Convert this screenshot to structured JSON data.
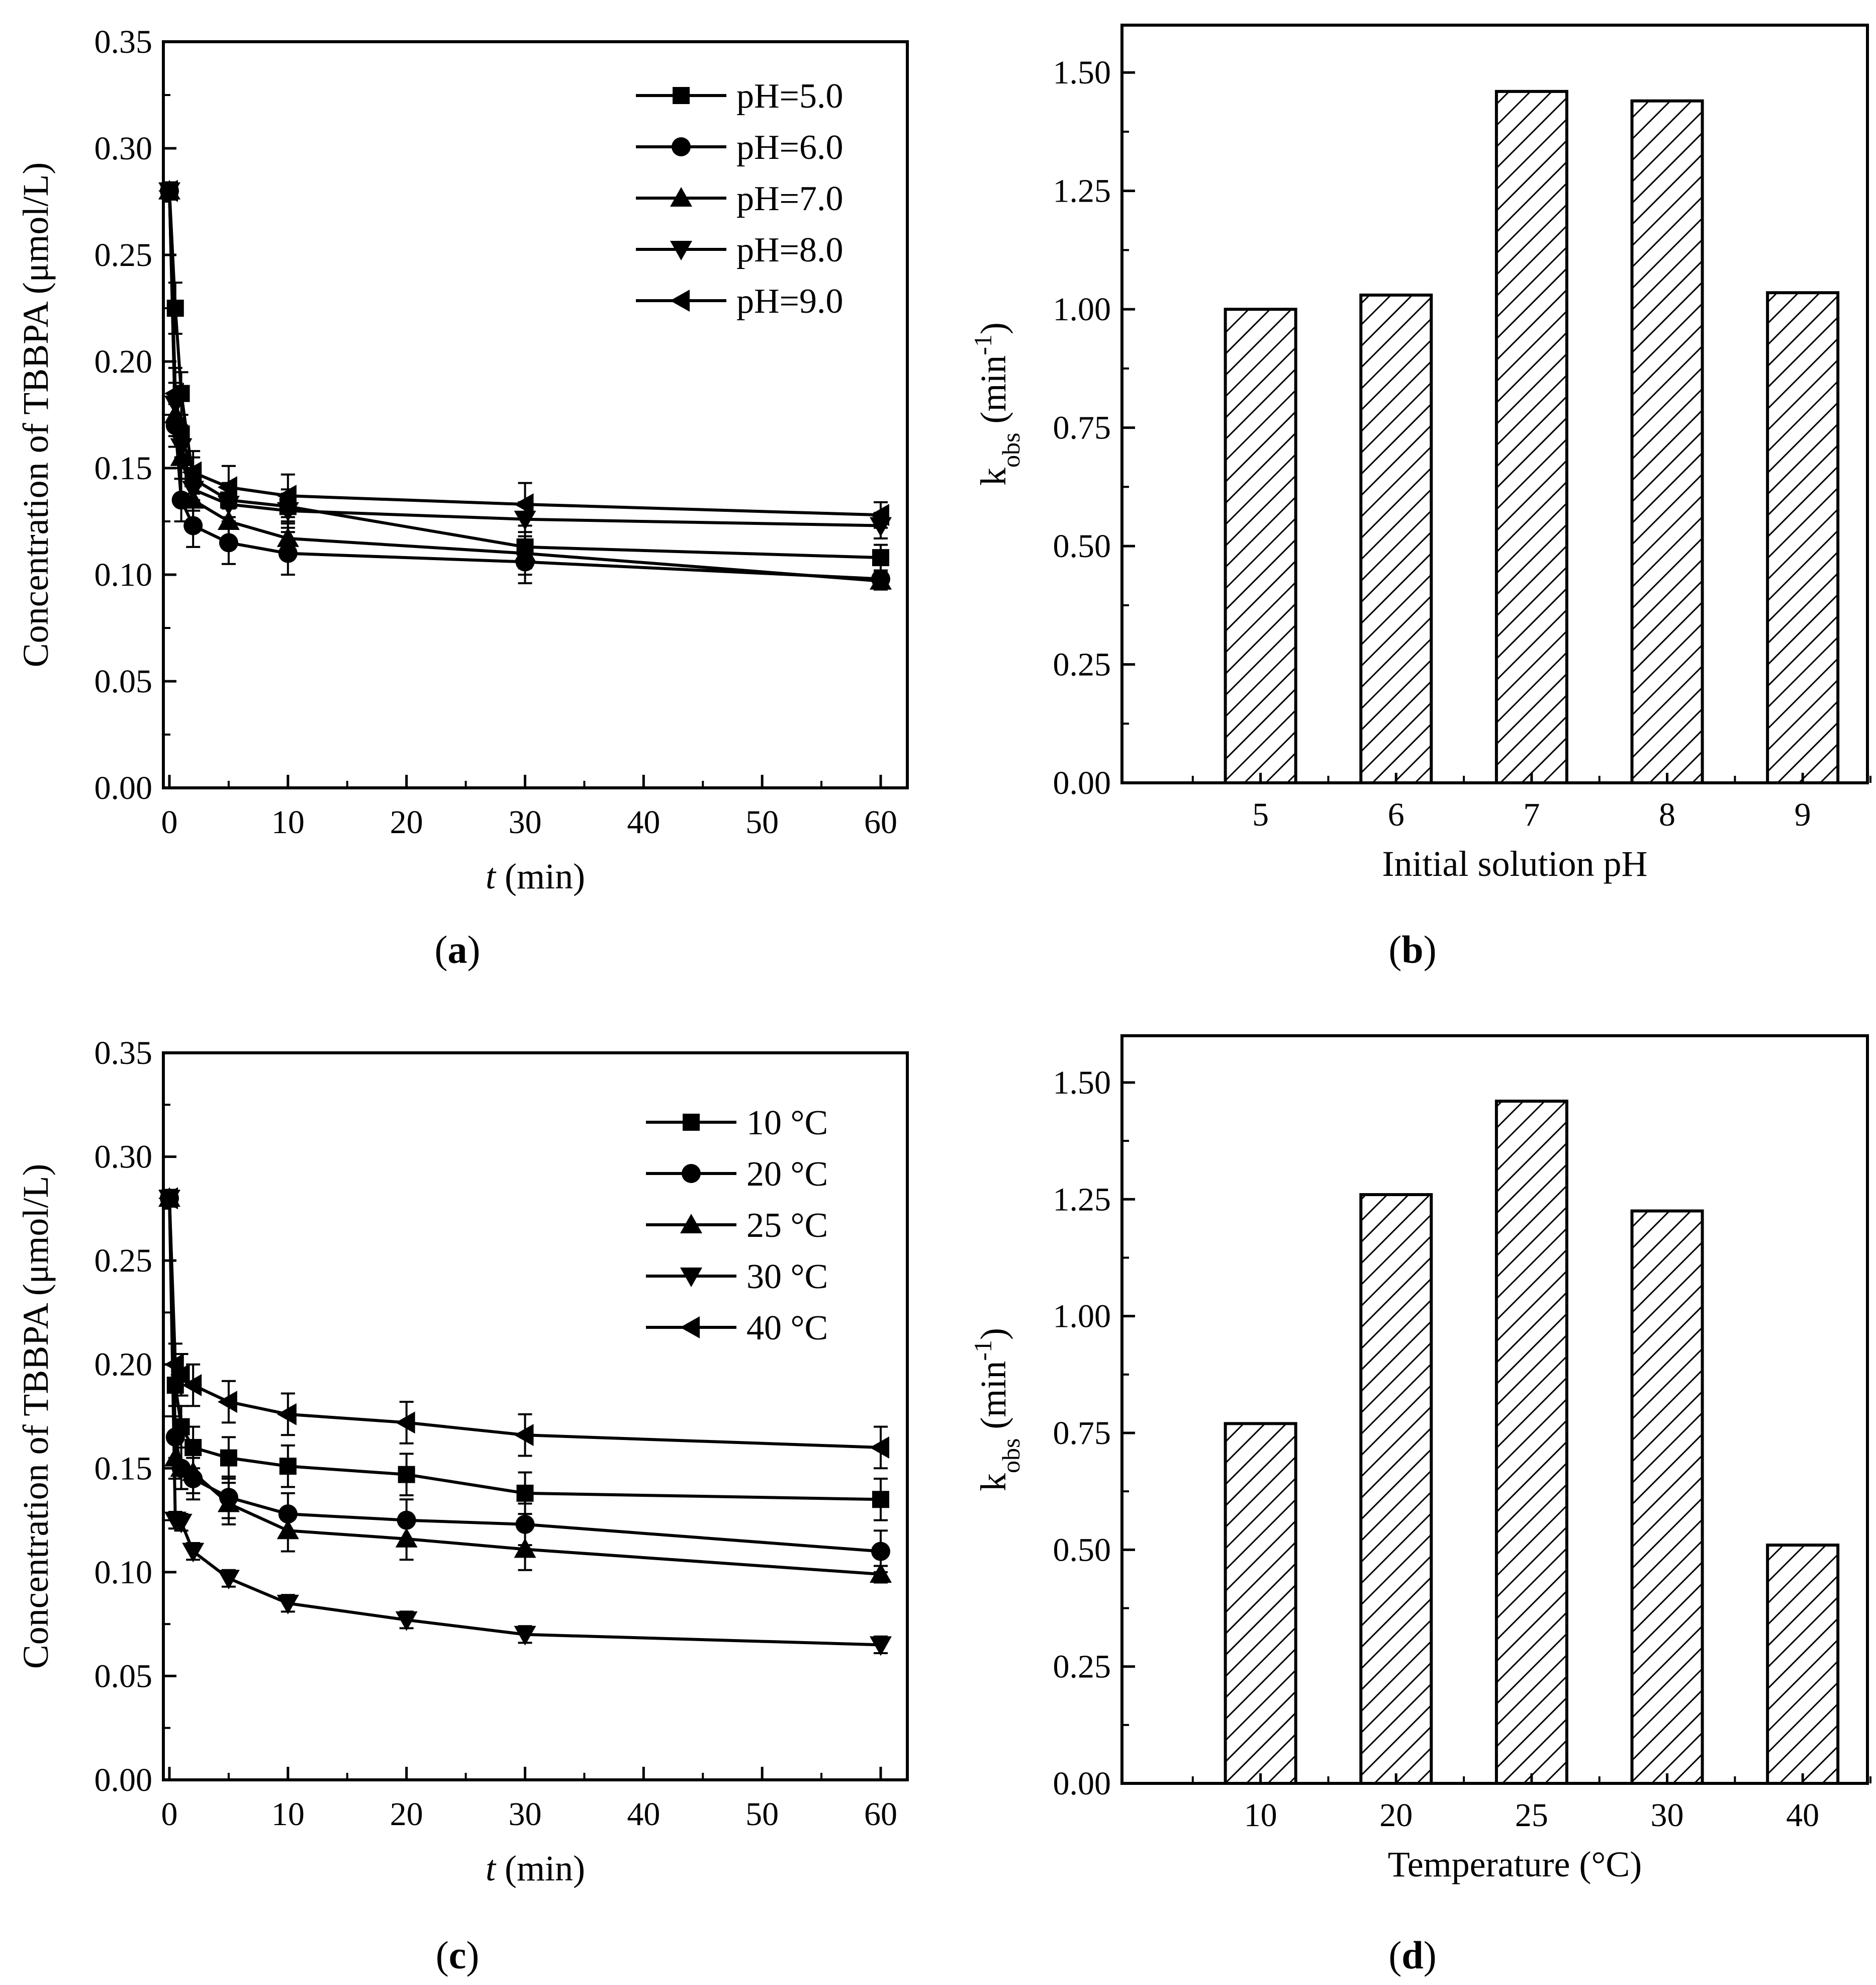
{
  "chart_data": [
    {
      "id": "a",
      "type": "line",
      "caption_letter": "a",
      "xlabel_italic": "t",
      "xlabel_rest": " (min)",
      "ylabel": "Concentration of TBBPA (μmol/L)",
      "xlim": [
        0,
        60
      ],
      "ylim": [
        0,
        0.35
      ],
      "xticks": [
        "0",
        "10",
        "20",
        "30",
        "40",
        "50",
        "60"
      ],
      "yticks": [
        "0.00",
        "0.05",
        "0.10",
        "0.15",
        "0.20",
        "0.25",
        "0.30",
        "0.35"
      ],
      "x": [
        0,
        0.5,
        1,
        2,
        5,
        10,
        30,
        60
      ],
      "series": [
        {
          "name": "pH=5.0",
          "marker": "square",
          "values": [
            0.28,
            0.225,
            0.185,
            0.145,
            0.135,
            0.132,
            0.113,
            0.108
          ],
          "err": [
            0.004,
            0.012,
            0.01,
            0.01,
            0.008,
            0.008,
            0.01,
            0.006
          ]
        },
        {
          "name": "pH=6.0",
          "marker": "circle",
          "values": [
            0.28,
            0.17,
            0.135,
            0.123,
            0.115,
            0.11,
            0.106,
            0.098
          ],
          "err": [
            0.004,
            0.01,
            0.01,
            0.01,
            0.01,
            0.01,
            0.01,
            0.004
          ]
        },
        {
          "name": "pH=7.0",
          "marker": "triangle-up",
          "values": [
            0.28,
            0.175,
            0.155,
            0.135,
            0.125,
            0.117,
            0.11,
            0.097
          ],
          "err": [
            0.004,
            0.01,
            0.01,
            0.01,
            0.01,
            0.008,
            0.01,
            0.004
          ]
        },
        {
          "name": "pH=8.0",
          "marker": "triangle-down",
          "values": [
            0.28,
            0.18,
            0.16,
            0.14,
            0.133,
            0.13,
            0.126,
            0.123
          ],
          "err": [
            0.004,
            0.01,
            0.01,
            0.01,
            0.008,
            0.008,
            0.008,
            0.006
          ]
        },
        {
          "name": "pH=9.0",
          "marker": "triangle-left",
          "values": [
            0.28,
            0.185,
            0.165,
            0.148,
            0.141,
            0.137,
            0.133,
            0.128
          ],
          "err": [
            0.004,
            0.012,
            0.01,
            0.01,
            0.01,
            0.01,
            0.01,
            0.006
          ]
        }
      ]
    },
    {
      "id": "b",
      "type": "bar",
      "caption_letter": "b",
      "xlabel": "Initial solution pH",
      "ylabel_main": "k",
      "ylabel_sub": "obs",
      "ylabel_unit": "(min",
      "ylabel_sup": "-1",
      "ylabel_close": ")",
      "ylim": [
        0,
        1.6
      ],
      "yticks": [
        "0.00",
        "0.25",
        "0.50",
        "0.75",
        "1.00",
        "1.25",
        "1.50"
      ],
      "categories": [
        "5",
        "6",
        "7",
        "8",
        "9"
      ],
      "values": [
        1.0,
        1.03,
        1.46,
        1.44,
        1.035
      ]
    },
    {
      "id": "c",
      "type": "line",
      "caption_letter": "c",
      "xlabel_italic": "t",
      "xlabel_rest": " (min)",
      "ylabel": "Concentration of TBBPA (μmol/L)",
      "xlim": [
        0,
        60
      ],
      "ylim": [
        0,
        0.35
      ],
      "xticks": [
        "0",
        "10",
        "20",
        "30",
        "40",
        "50",
        "60"
      ],
      "yticks": [
        "0.00",
        "0.05",
        "0.10",
        "0.15",
        "0.20",
        "0.25",
        "0.30",
        "0.35"
      ],
      "x": [
        0,
        0.5,
        1,
        2,
        5,
        10,
        20,
        30,
        60
      ],
      "series": [
        {
          "name": "10 °C",
          "marker": "square",
          "values": [
            0.28,
            0.19,
            0.17,
            0.16,
            0.155,
            0.151,
            0.147,
            0.138,
            0.135
          ],
          "err": [
            0.004,
            0.01,
            0.01,
            0.01,
            0.01,
            0.01,
            0.01,
            0.01,
            0.01
          ]
        },
        {
          "name": "20 °C",
          "marker": "circle",
          "values": [
            0.28,
            0.165,
            0.15,
            0.145,
            0.136,
            0.128,
            0.125,
            0.123,
            0.11
          ],
          "err": [
            0.004,
            0.01,
            0.01,
            0.01,
            0.01,
            0.01,
            0.01,
            0.01,
            0.01
          ]
        },
        {
          "name": "25 °C",
          "marker": "triangle-up",
          "values": [
            0.28,
            0.155,
            0.15,
            0.148,
            0.133,
            0.12,
            0.116,
            0.111,
            0.099
          ],
          "err": [
            0.004,
            0.01,
            0.01,
            0.01,
            0.01,
            0.01,
            0.01,
            0.01,
            0.004
          ]
        },
        {
          "name": "30 °C",
          "marker": "triangle-down",
          "values": [
            0.28,
            0.125,
            0.124,
            0.11,
            0.097,
            0.085,
            0.077,
            0.07,
            0.065
          ],
          "err": [
            0.004,
            0.004,
            0.004,
            0.004,
            0.004,
            0.004,
            0.004,
            0.004,
            0.004
          ]
        },
        {
          "name": "40 °C",
          "marker": "triangle-left",
          "values": [
            0.28,
            0.2,
            0.195,
            0.19,
            0.182,
            0.176,
            0.172,
            0.166,
            0.16
          ],
          "err": [
            0.004,
            0.01,
            0.01,
            0.01,
            0.01,
            0.01,
            0.01,
            0.01,
            0.01
          ]
        }
      ]
    },
    {
      "id": "d",
      "type": "bar",
      "caption_letter": "d",
      "xlabel": "Temperature (°C)",
      "ylabel_main": "k",
      "ylabel_sub": "obs",
      "ylabel_unit": "(min",
      "ylabel_sup": "-1",
      "ylabel_close": ")",
      "ylim": [
        0,
        1.6
      ],
      "yticks": [
        "0.00",
        "0.25",
        "0.50",
        "0.75",
        "1.00",
        "1.25",
        "1.50"
      ],
      "categories": [
        "10",
        "20",
        "25",
        "30",
        "40"
      ],
      "values": [
        0.77,
        1.26,
        1.46,
        1.225,
        0.51
      ]
    }
  ]
}
